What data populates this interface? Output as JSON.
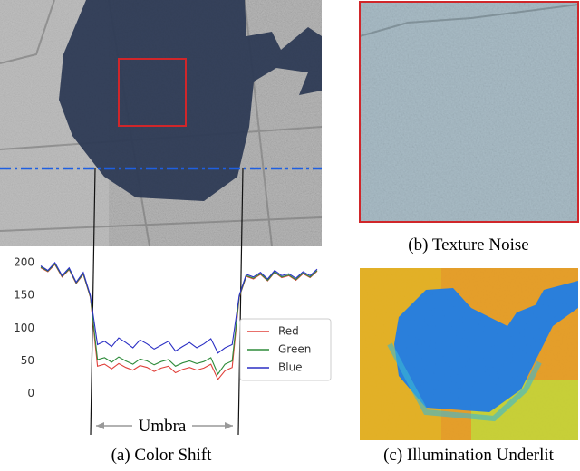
{
  "chart_data": {
    "type": "line",
    "series": [
      {
        "name": "Red",
        "color": "#e0403a",
        "values": [
          192,
          186,
          197,
          178,
          189,
          168,
          182,
          147,
          42,
          45,
          38,
          46,
          40,
          36,
          43,
          40,
          34,
          39,
          42,
          32,
          37,
          40,
          36,
          39,
          45,
          22,
          35,
          40,
          147,
          179,
          175,
          182,
          172,
          185,
          177,
          180,
          173,
          183,
          177,
          187
        ]
      },
      {
        "name": "Green",
        "color": "#2e8b3a",
        "values": [
          193,
          187,
          198,
          179,
          190,
          169,
          183,
          148,
          52,
          55,
          48,
          56,
          50,
          45,
          53,
          50,
          44,
          49,
          52,
          42,
          47,
          50,
          46,
          49,
          55,
          30,
          45,
          50,
          148,
          180,
          176,
          183,
          173,
          186,
          178,
          181,
          174,
          184,
          178,
          188
        ]
      },
      {
        "name": "Blue",
        "color": "#2b2fc4",
        "values": [
          195,
          188,
          200,
          180,
          192,
          170,
          185,
          150,
          75,
          80,
          72,
          85,
          78,
          70,
          82,
          76,
          68,
          74,
          80,
          65,
          72,
          78,
          70,
          76,
          84,
          62,
          70,
          75,
          150,
          182,
          178,
          185,
          175,
          188,
          180,
          183,
          176,
          186,
          180,
          190
        ]
      }
    ],
    "ylim": [
      -17,
      215
    ],
    "yticks": [
      0,
      50,
      100,
      150,
      200
    ],
    "legend": "center right",
    "grid": false,
    "annotation": "Umbra"
  },
  "captions": [
    "(a) Color Shift",
    "(b) Texture Noise",
    "(c) Illumination Underlit"
  ]
}
